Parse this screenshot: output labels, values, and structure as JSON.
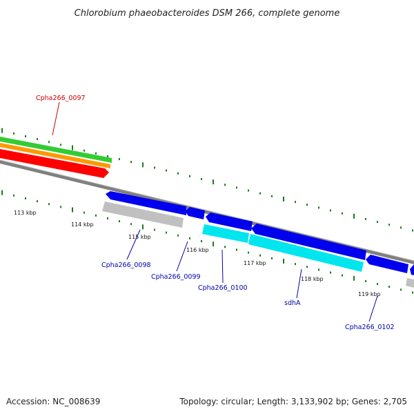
{
  "title": "Chlorobium phaeobacteroides DSM 266, complete genome",
  "footer": {
    "accession": "Accession: NC_008639",
    "summary": "Topology: circular; Length: 3,133,902 bp; Genes: 2,705"
  },
  "colors": {
    "backbone": "#808080",
    "tick": "#1a7a1a",
    "forward_red": "#ff0000",
    "forward_orange": "#ff9900",
    "forward_green": "#33cc33",
    "reverse_blue": "#0000ee",
    "reverse_cyan": "#00e5ee",
    "grey_feature": "#c0c0c0",
    "label_red": "#cc0000",
    "label_blue": "#0000aa"
  },
  "ticks": [
    {
      "text": "113 kbp"
    },
    {
      "text": "114 kbp"
    },
    {
      "text": "115 kbp"
    },
    {
      "text": "116 kbp"
    },
    {
      "text": "117 kbp"
    },
    {
      "text": "118 kbp"
    },
    {
      "text": "119 kbp"
    }
  ],
  "gene_labels": [
    {
      "text": "Cpha266_0097",
      "strand": "forward"
    },
    {
      "text": "Cpha266_0098",
      "strand": "reverse"
    },
    {
      "text": "Cpha266_0099",
      "strand": "reverse"
    },
    {
      "text": "Cpha266_0100",
      "strand": "reverse"
    },
    {
      "text": "sdhA",
      "strand": "reverse"
    },
    {
      "text": "Cpha266_0102",
      "strand": "reverse"
    }
  ]
}
